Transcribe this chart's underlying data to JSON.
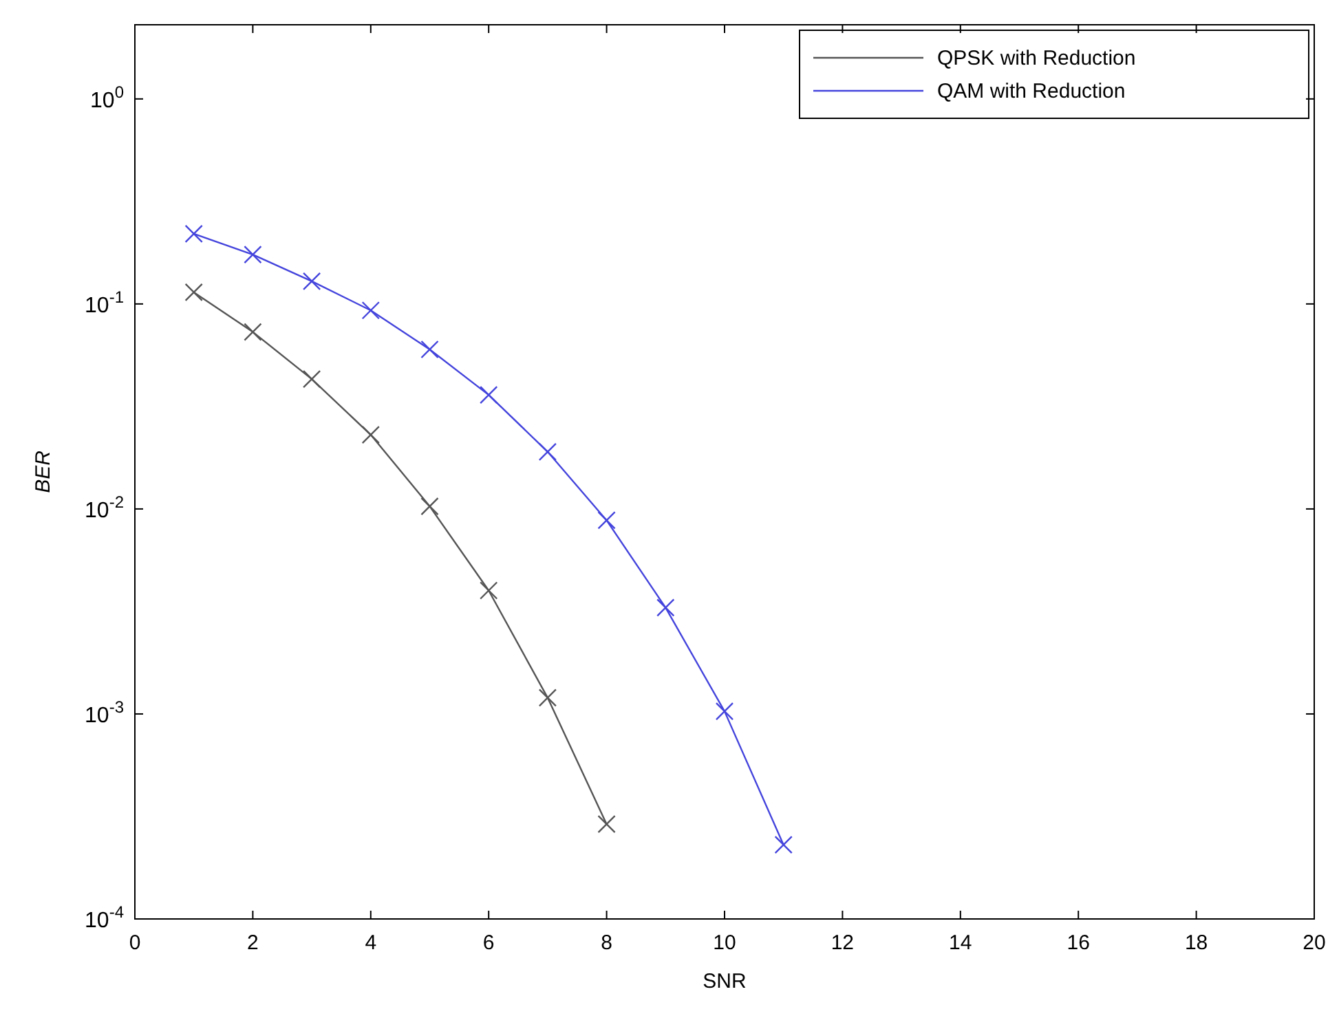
{
  "chart_data": {
    "type": "line",
    "xlabel": "SNR",
    "ylabel": "BER",
    "log": "y",
    "x": [
      1,
      2,
      3,
      4,
      5,
      6,
      7,
      8,
      9,
      10,
      11
    ],
    "xlim": [
      0,
      20
    ],
    "xticks": [
      0,
      2,
      4,
      6,
      8,
      10,
      12,
      14,
      16,
      18,
      20
    ],
    "ylim": [
      0.0001,
      2.3
    ],
    "yticks": [
      {
        "value": 0.0001,
        "label": "10$^{-4}$"
      },
      {
        "value": 0.001,
        "label": "10$^{-3}$"
      },
      {
        "value": 0.01,
        "label": "10$^{-2}$"
      },
      {
        "value": 0.1,
        "label": "10$^{-1}$"
      },
      {
        "value": 1,
        "label": "10$^{0}$"
      }
    ],
    "grid": false,
    "legend": "top right",
    "marker": "cross",
    "line_style": "solid",
    "series": [
      {
        "name": "QPSK with Reduction",
        "color": "#555555",
        "values": [
          0.114,
          0.073,
          0.043,
          0.023,
          0.0103,
          0.004,
          0.0012,
          0.00029,
          null,
          null,
          null
        ]
      },
      {
        "name": "QAM with Reduction",
        "color": "#4444dd",
        "values": [
          0.22,
          0.174,
          0.129,
          0.093,
          0.06,
          0.036,
          0.019,
          0.0088,
          0.0033,
          0.00103,
          0.00023
        ]
      }
    ]
  }
}
